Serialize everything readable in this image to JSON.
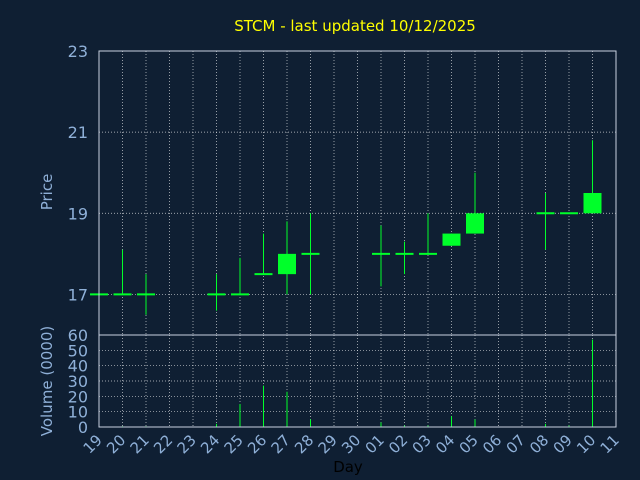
{
  "title": "STCM - last updated 10/12/2025",
  "colors": {
    "background": "#0f1f33",
    "title": "#ffff00",
    "axis_text": "#8fb0d8",
    "frame": "#c8d2e0",
    "grid": "#ffffff",
    "candle": "#00ff2a"
  },
  "chart_data": [
    {
      "type": "candlestick",
      "title": "STCM - last updated 10/12/2025",
      "ylabel": "Price",
      "ylim": [
        16,
        23
      ],
      "yticks": [
        17,
        19,
        21,
        23
      ],
      "grid": true,
      "x_tick_labels": [
        "19",
        "20",
        "21",
        "22",
        "23",
        "24",
        "25",
        "26",
        "27",
        "28",
        "29",
        "30",
        "01",
        "02",
        "03",
        "04",
        "05",
        "06",
        "07",
        "08",
        "09",
        "10",
        "11"
      ],
      "candles": [
        {
          "day": "19",
          "open": 17.0,
          "high": 17.0,
          "low": 17.0,
          "close": 17.0
        },
        {
          "day": "20",
          "open": 17.0,
          "high": 18.1,
          "low": 17.0,
          "close": 17.0
        },
        {
          "day": "21",
          "open": 17.0,
          "high": 17.5,
          "low": 16.5,
          "close": 17.0
        },
        {
          "day": "24",
          "open": 17.0,
          "high": 17.5,
          "low": 16.6,
          "close": 17.0
        },
        {
          "day": "25",
          "open": 17.0,
          "high": 17.9,
          "low": 17.0,
          "close": 17.0
        },
        {
          "day": "26",
          "open": 17.5,
          "high": 18.5,
          "low": 17.5,
          "close": 17.5
        },
        {
          "day": "27",
          "open": 17.5,
          "high": 18.8,
          "low": 17.0,
          "close": 18.0
        },
        {
          "day": "28",
          "open": 18.0,
          "high": 19.0,
          "low": 17.0,
          "close": 18.0
        },
        {
          "day": "01",
          "open": 18.0,
          "high": 18.7,
          "low": 17.2,
          "close": 18.0
        },
        {
          "day": "02",
          "open": 18.0,
          "high": 18.3,
          "low": 17.5,
          "close": 18.0
        },
        {
          "day": "03",
          "open": 18.0,
          "high": 19.0,
          "low": 18.0,
          "close": 18.0
        },
        {
          "day": "04",
          "open": 18.2,
          "high": 18.5,
          "low": 18.2,
          "close": 18.5
        },
        {
          "day": "05",
          "open": 18.5,
          "high": 20.0,
          "low": 18.5,
          "close": 19.0
        },
        {
          "day": "08",
          "open": 19.0,
          "high": 19.5,
          "low": 18.1,
          "close": 19.0
        },
        {
          "day": "09",
          "open": 19.0,
          "high": 19.0,
          "low": 19.0,
          "close": 19.0
        },
        {
          "day": "10",
          "open": 19.0,
          "high": 20.8,
          "low": 19.0,
          "close": 19.5
        }
      ]
    },
    {
      "type": "bar",
      "ylabel": "Volume (0000)",
      "xlabel": "Day",
      "ylim": [
        0,
        60
      ],
      "yticks": [
        0,
        10,
        20,
        30,
        40,
        50,
        60
      ],
      "grid": true,
      "x_tick_labels": [
        "19",
        "20",
        "21",
        "22",
        "23",
        "24",
        "25",
        "26",
        "27",
        "28",
        "29",
        "30",
        "01",
        "02",
        "03",
        "04",
        "05",
        "06",
        "07",
        "08",
        "09",
        "10",
        "11"
      ],
      "volumes": [
        {
          "day": "19",
          "value": 0
        },
        {
          "day": "20",
          "value": 0.5
        },
        {
          "day": "21",
          "value": 0.5
        },
        {
          "day": "24",
          "value": 2
        },
        {
          "day": "25",
          "value": 15
        },
        {
          "day": "26",
          "value": 27
        },
        {
          "day": "27",
          "value": 23
        },
        {
          "day": "28",
          "value": 5
        },
        {
          "day": "01",
          "value": 3
        },
        {
          "day": "02",
          "value": 1
        },
        {
          "day": "03",
          "value": 1
        },
        {
          "day": "04",
          "value": 7
        },
        {
          "day": "05",
          "value": 5
        },
        {
          "day": "08",
          "value": 2
        },
        {
          "day": "09",
          "value": 1
        },
        {
          "day": "10",
          "value": 57
        }
      ]
    }
  ]
}
